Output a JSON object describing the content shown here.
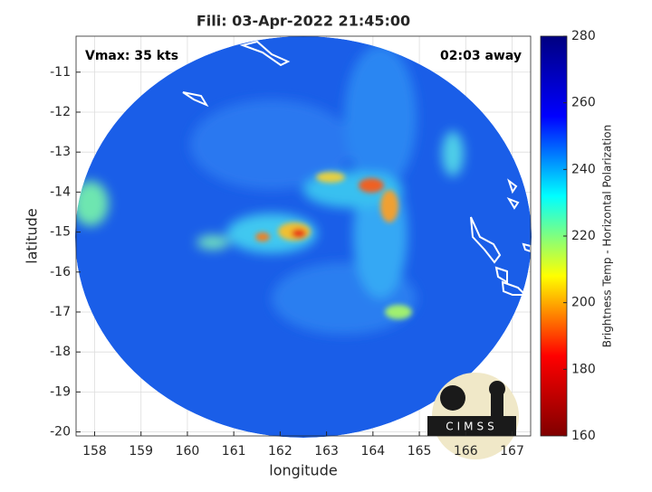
{
  "chart_data": {
    "type": "swath",
    "title": "Fili: 03-Apr-2022 21:45:00",
    "annotations": [
      "Vmax: 35 kts",
      "02:03 away"
    ],
    "xlabel": "longitude",
    "ylabel": "latitude",
    "xlim": [
      157.6,
      167.4
    ],
    "xticks": [
      158,
      159,
      160,
      161,
      162,
      163,
      164,
      165,
      166,
      167
    ],
    "ylim": [
      -20.1,
      -10.1
    ],
    "yticks": [
      -11,
      -12,
      -13,
      -14,
      -15,
      -16,
      -17,
      -18,
      -19,
      -20
    ],
    "grid": true,
    "colormap": "jet",
    "colorbar_label": "Brightness Temp - Horizontal Polarization",
    "clim": [
      160,
      280
    ],
    "cticks": [
      160,
      180,
      200,
      220,
      240,
      260,
      280
    ],
    "logo": "CIMSS"
  }
}
